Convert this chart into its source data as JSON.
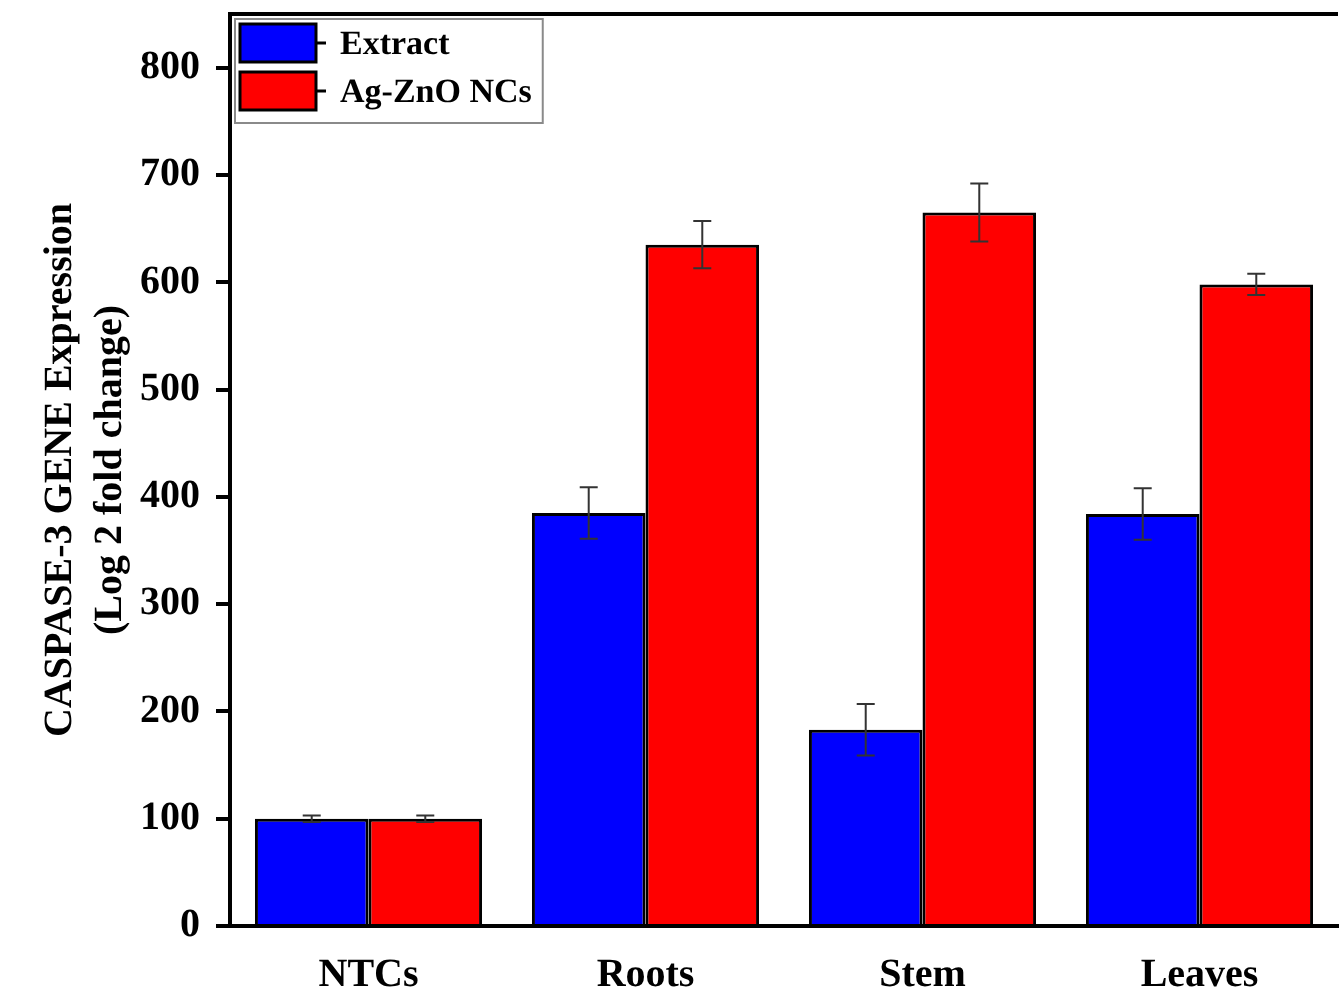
{
  "chart_data": {
    "type": "bar",
    "categories": [
      "NTCs",
      "Roots",
      "Stem",
      "Leaves"
    ],
    "ylabel": "CASPASE-3 GENE Expression (Log 2 fold change)",
    "series": [
      {
        "name": "Extract",
        "color": "#0000ff",
        "values": [
          100,
          385,
          183,
          384
        ],
        "errors": [
          3,
          24,
          24,
          24
        ]
      },
      {
        "name": "Ag-ZnO NCs",
        "color": "#ff0000",
        "values": [
          100,
          635,
          665,
          598
        ],
        "errors": [
          3,
          22,
          27,
          10
        ]
      }
    ],
    "ylim": [
      0,
      850
    ],
    "yticks": [
      0,
      100,
      200,
      300,
      400,
      500,
      600,
      700,
      800
    ],
    "legend": "top left"
  }
}
